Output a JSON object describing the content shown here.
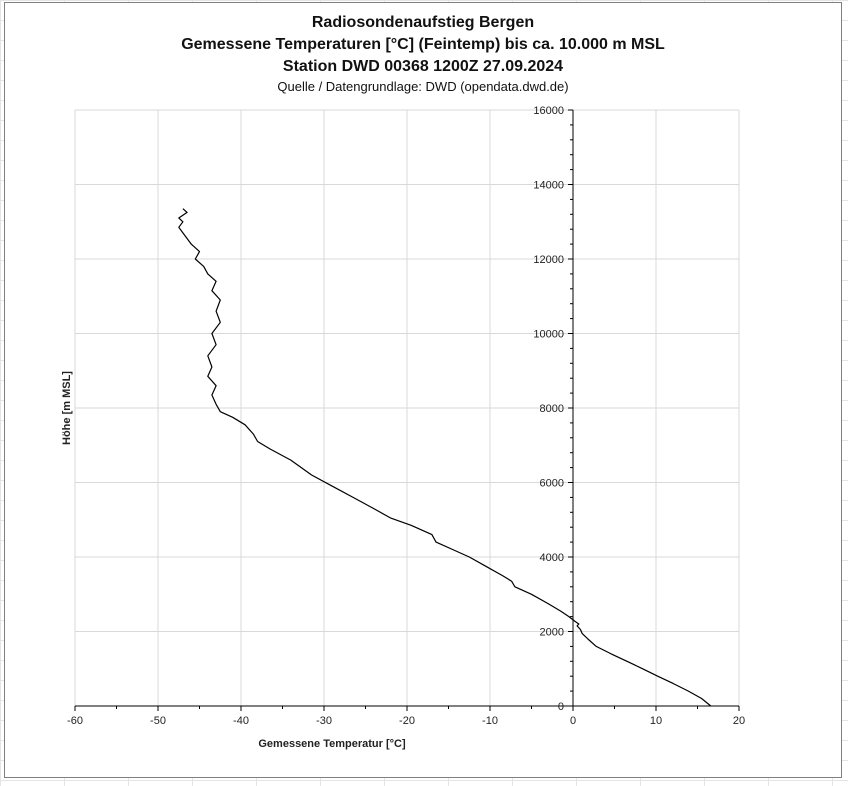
{
  "chart_data": {
    "type": "line",
    "title_lines": [
      "Radiosondenaufstieg Bergen",
      "Gemessene Temperaturen [°C] (Feintemp) bis ca. 10.000 m MSL",
      "Station DWD 00368 1200Z 27.09.2024"
    ],
    "subtitle": "Quelle / Datengrundlage: DWD (opendata.dwd.de)",
    "xlabel": "Gemessene Temperatur [°C]",
    "ylabel": "Höhe [m MSL]",
    "xlim": [
      -60,
      20
    ],
    "ylim": [
      0,
      16000
    ],
    "x_ticks": [
      -60,
      -50,
      -40,
      -30,
      -20,
      -10,
      0,
      10,
      20
    ],
    "y_ticks": [
      0,
      2000,
      4000,
      6000,
      8000,
      10000,
      12000,
      14000,
      16000
    ],
    "grid": true,
    "legend": "none",
    "line_color": "#000000",
    "series": [
      {
        "x": [
          16.6,
          15.5,
          13.9,
          12.1,
          10.2,
          8.4,
          6.5,
          4.6,
          2.8,
          1.8,
          1.1,
          0.9,
          0.5,
          0.7,
          0.2,
          -0.5,
          -1.5,
          -3.0,
          -5.0,
          -7.0,
          -7.4,
          -8.5,
          -10.5,
          -12.5,
          -14.5,
          -16.5,
          -17.0,
          -19.5,
          -22.0,
          -24.0,
          -26.5,
          -29.0,
          -31.5,
          -34.0,
          -36.5,
          -38.0,
          -38.5,
          -39.5,
          -41.0,
          -42.5,
          -43.0,
          -43.5,
          -43.0,
          -44.0,
          -43.5,
          -44.0,
          -43.0,
          -43.5,
          -42.5,
          -43.0,
          -42.5,
          -43.5,
          -43.0,
          -44.0,
          -44.5,
          -45.5,
          -45.0,
          -46.0,
          -46.5,
          -47.0,
          -47.5,
          -47.0,
          -47.5,
          -46.5,
          -47.0
        ],
        "y": [
          0,
          200,
          400,
          600,
          800,
          1000,
          1200,
          1400,
          1600,
          1800,
          1950,
          2050,
          2150,
          2200,
          2280,
          2400,
          2550,
          2750,
          3000,
          3200,
          3350,
          3500,
          3750,
          4000,
          4200,
          4400,
          4600,
          4850,
          5050,
          5300,
          5600,
          5900,
          6200,
          6600,
          6900,
          7100,
          7300,
          7550,
          7750,
          7900,
          8100,
          8350,
          8600,
          8850,
          9100,
          9400,
          9700,
          10000,
          10300,
          10600,
          10900,
          11150,
          11400,
          11600,
          11800,
          12000,
          12200,
          12400,
          12550,
          12700,
          12850,
          13000,
          13100,
          13250,
          13350
        ]
      }
    ]
  }
}
